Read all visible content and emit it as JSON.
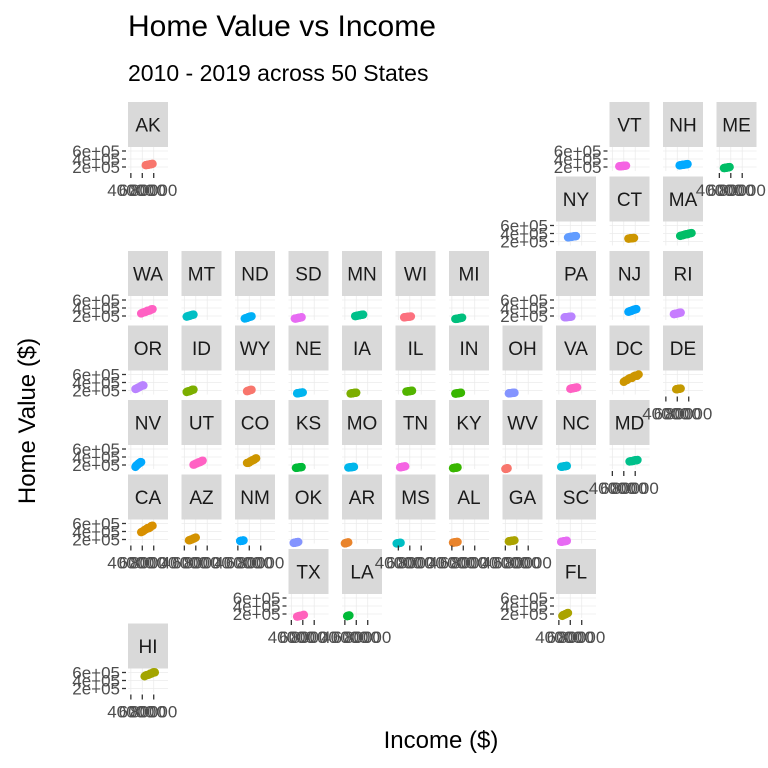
{
  "chart_data": {
    "type": "scatter",
    "title": "Home Value vs Income",
    "subtitle": "2010 - 2019 across 50 States",
    "xlabel": "Income ($)",
    "ylabel": "Home Value ($)",
    "x_ticks": [
      {
        "value": 40000,
        "label": "40000"
      },
      {
        "value": 60000,
        "label": "60000"
      },
      {
        "value": 80000,
        "label": "80000"
      }
    ],
    "y_ticks": [
      {
        "value": 200000,
        "label": "2e+05"
      },
      {
        "value": 400000,
        "label": "4e+05"
      },
      {
        "value": 600000,
        "label": "6e+05"
      }
    ],
    "xlim": [
      35000,
      105000
    ],
    "ylim": [
      100000,
      700000
    ],
    "grid": true,
    "legend": "none",
    "facet_layout": "geofacet US state grid",
    "panels": [
      {
        "state": "AK",
        "row": 0,
        "col": 0,
        "color": "#f8766d",
        "x_range": [
          66000,
          78000
        ],
        "y_range": [
          245000,
          280000
        ]
      },
      {
        "state": "VT",
        "row": 0,
        "col": 9,
        "color": "#f564e3",
        "x_range": [
          52000,
          64000
        ],
        "y_range": [
          215000,
          235000
        ]
      },
      {
        "state": "NH",
        "row": 0,
        "col": 10,
        "color": "#00a9ff",
        "x_range": [
          64000,
          78000
        ],
        "y_range": [
          240000,
          275000
        ]
      },
      {
        "state": "ME",
        "row": 0,
        "col": 11,
        "color": "#00be67",
        "x_range": [
          48000,
          58000
        ],
        "y_range": [
          170000,
          200000
        ]
      },
      {
        "state": "NY",
        "row": 1,
        "col": 8,
        "color": "#619cff",
        "x_range": [
          56000,
          70000
        ],
        "y_range": [
          300000,
          340000
        ]
      },
      {
        "state": "CT",
        "row": 1,
        "col": 9,
        "color": "#cd9600",
        "x_range": [
          68000,
          78000
        ],
        "y_range": [
          270000,
          290000
        ]
      },
      {
        "state": "MA",
        "row": 1,
        "col": 10,
        "color": "#00be67",
        "x_range": [
          65000,
          85000
        ],
        "y_range": [
          330000,
          420000
        ]
      },
      {
        "state": "WA",
        "row": 2,
        "col": 0,
        "color": "#ff61c3",
        "x_range": [
          58000,
          78000
        ],
        "y_range": [
          260000,
          380000
        ]
      },
      {
        "state": "MT",
        "row": 2,
        "col": 1,
        "color": "#00bfc4",
        "x_range": [
          44000,
          56000
        ],
        "y_range": [
          180000,
          240000
        ]
      },
      {
        "state": "ND",
        "row": 2,
        "col": 2,
        "color": "#00b0f6",
        "x_range": [
          52000,
          64000
        ],
        "y_range": [
          130000,
          200000
        ]
      },
      {
        "state": "SD",
        "row": 2,
        "col": 3,
        "color": "#e76bf3",
        "x_range": [
          46000,
          58000
        ],
        "y_range": [
          130000,
          170000
        ]
      },
      {
        "state": "MN",
        "row": 2,
        "col": 4,
        "color": "#00c08b",
        "x_range": [
          58000,
          72000
        ],
        "y_range": [
          190000,
          240000
        ]
      },
      {
        "state": "WI",
        "row": 2,
        "col": 5,
        "color": "#fc717f",
        "x_range": [
          50000,
          62000
        ],
        "y_range": [
          165000,
          190000
        ]
      },
      {
        "state": "MI",
        "row": 2,
        "col": 6,
        "color": "#00bf7d",
        "x_range": [
          46000,
          58000
        ],
        "y_range": [
          120000,
          160000
        ]
      },
      {
        "state": "PA",
        "row": 2,
        "col": 8,
        "color": "#b983ff",
        "x_range": [
          50000,
          62000
        ],
        "y_range": [
          165000,
          185000
        ]
      },
      {
        "state": "NJ",
        "row": 2,
        "col": 9,
        "color": "#00a5ff",
        "x_range": [
          68000,
          82000
        ],
        "y_range": [
          300000,
          380000
        ]
      },
      {
        "state": "RI",
        "row": 2,
        "col": 10,
        "color": "#c77cff",
        "x_range": [
          54000,
          66000
        ],
        "y_range": [
          240000,
          290000
        ]
      },
      {
        "state": "OR",
        "row": 3,
        "col": 0,
        "color": "#b983ff",
        "x_range": [
          48000,
          62000
        ],
        "y_range": [
          230000,
          340000
        ]
      },
      {
        "state": "ID",
        "row": 3,
        "col": 1,
        "color": "#7cae00",
        "x_range": [
          44000,
          56000
        ],
        "y_range": [
          155000,
          230000
        ]
      },
      {
        "state": "WY",
        "row": 3,
        "col": 2,
        "color": "#f8766d",
        "x_range": [
          56000,
          64000
        ],
        "y_range": [
          180000,
          220000
        ]
      },
      {
        "state": "NE",
        "row": 3,
        "col": 3,
        "color": "#00b4ef",
        "x_range": [
          50000,
          60000
        ],
        "y_range": [
          125000,
          155000
        ]
      },
      {
        "state": "IA",
        "row": 3,
        "col": 4,
        "color": "#7cae00",
        "x_range": [
          50000,
          60000
        ],
        "y_range": [
          120000,
          150000
        ]
      },
      {
        "state": "IL",
        "row": 3,
        "col": 5,
        "color": "#53b400",
        "x_range": [
          54000,
          64000
        ],
        "y_range": [
          170000,
          195000
        ]
      },
      {
        "state": "IN",
        "row": 3,
        "col": 6,
        "color": "#39b600",
        "x_range": [
          46000,
          56000
        ],
        "y_range": [
          120000,
          145000
        ]
      },
      {
        "state": "OH",
        "row": 3,
        "col": 7,
        "color": "#8494ff",
        "x_range": [
          46000,
          56000
        ],
        "y_range": [
          128000,
          145000
        ]
      },
      {
        "state": "VA",
        "row": 3,
        "col": 8,
        "color": "#ff61c3",
        "x_range": [
          60000,
          72000
        ],
        "y_range": [
          240000,
          280000
        ]
      },
      {
        "state": "DC",
        "row": 3,
        "col": 9,
        "color": "#cd9600",
        "x_range": [
          60000,
          86000
        ],
        "y_range": [
          400000,
          620000
        ]
      },
      {
        "state": "DE",
        "row": 3,
        "col": 10,
        "color": "#c49a00",
        "x_range": [
          58000,
          66000
        ],
        "y_range": [
          230000,
          250000
        ]
      },
      {
        "state": "NV",
        "row": 4,
        "col": 0,
        "color": "#00a9ff",
        "x_range": [
          48000,
          58000
        ],
        "y_range": [
          150000,
          290000
        ]
      },
      {
        "state": "UT",
        "row": 4,
        "col": 1,
        "color": "#ff61c3",
        "x_range": [
          56000,
          72000
        ],
        "y_range": [
          200000,
          310000
        ]
      },
      {
        "state": "CO",
        "row": 4,
        "col": 2,
        "color": "#cd9600",
        "x_range": [
          56000,
          72000
        ],
        "y_range": [
          230000,
          380000
        ]
      },
      {
        "state": "KS",
        "row": 4,
        "col": 3,
        "color": "#00ba38",
        "x_range": [
          48000,
          58000
        ],
        "y_range": [
          125000,
          150000
        ]
      },
      {
        "state": "MO",
        "row": 4,
        "col": 4,
        "color": "#00b6eb",
        "x_range": [
          46000,
          56000
        ],
        "y_range": [
          135000,
          155000
        ]
      },
      {
        "state": "TN",
        "row": 4,
        "col": 5,
        "color": "#f564e3",
        "x_range": [
          43000,
          52000
        ],
        "y_range": [
          140000,
          170000
        ]
      },
      {
        "state": "KY",
        "row": 4,
        "col": 6,
        "color": "#39b600",
        "x_range": [
          42000,
          50000
        ],
        "y_range": [
          120000,
          140000
        ]
      },
      {
        "state": "WV",
        "row": 4,
        "col": 7,
        "color": "#f8766d",
        "x_range": [
          40000,
          44000
        ],
        "y_range": [
          100000,
          120000
        ]
      },
      {
        "state": "NC",
        "row": 4,
        "col": 8,
        "color": "#00bcd8",
        "x_range": [
          44000,
          54000
        ],
        "y_range": [
          150000,
          180000
        ]
      },
      {
        "state": "MD",
        "row": 4,
        "col": 9,
        "color": "#00c08b",
        "x_range": [
          70000,
          84000
        ],
        "y_range": [
          280000,
          330000
        ]
      },
      {
        "state": "CA",
        "row": 5,
        "col": 0,
        "color": "#d89000",
        "x_range": [
          58000,
          78000
        ],
        "y_range": [
          370000,
          560000
        ]
      },
      {
        "state": "AZ",
        "row": 5,
        "col": 1,
        "color": "#d39200",
        "x_range": [
          48000,
          60000
        ],
        "y_range": [
          170000,
          250000
        ]
      },
      {
        "state": "NM",
        "row": 5,
        "col": 2,
        "color": "#00a9ff",
        "x_range": [
          44000,
          50000
        ],
        "y_range": [
          160000,
          180000
        ]
      },
      {
        "state": "OK",
        "row": 5,
        "col": 3,
        "color": "#8494ff",
        "x_range": [
          44000,
          52000
        ],
        "y_range": [
          110000,
          140000
        ]
      },
      {
        "state": "AR",
        "row": 5,
        "col": 4,
        "color": "#e9842c",
        "x_range": [
          40000,
          46000
        ],
        "y_range": [
          100000,
          130000
        ]
      },
      {
        "state": "MS",
        "row": 5,
        "col": 5,
        "color": "#00bfc4",
        "x_range": [
          37000,
          44000
        ],
        "y_range": [
          100000,
          120000
        ]
      },
      {
        "state": "AL",
        "row": 5,
        "col": 6,
        "color": "#e9842c",
        "x_range": [
          42000,
          50000
        ],
        "y_range": [
          120000,
          140000
        ]
      },
      {
        "state": "GA",
        "row": 5,
        "col": 7,
        "color": "#aba300",
        "x_range": [
          46000,
          56000
        ],
        "y_range": [
          150000,
          180000
        ]
      },
      {
        "state": "SC",
        "row": 5,
        "col": 8,
        "color": "#e76bf3",
        "x_range": [
          44000,
          54000
        ],
        "y_range": [
          140000,
          170000
        ]
      },
      {
        "state": "TX",
        "row": 6,
        "col": 3,
        "color": "#ff62bc",
        "x_range": [
          50000,
          62000
        ],
        "y_range": [
          130000,
          180000
        ]
      },
      {
        "state": "LA",
        "row": 6,
        "col": 4,
        "color": "#00ba38",
        "x_range": [
          44000,
          48000
        ],
        "y_range": [
          145000,
          165000
        ]
      },
      {
        "state": "FL",
        "row": 6,
        "col": 8,
        "color": "#aba300",
        "x_range": [
          46000,
          56000
        ],
        "y_range": [
          150000,
          230000
        ]
      },
      {
        "state": "HI",
        "row": 7,
        "col": 0,
        "color": "#a3a500",
        "x_range": [
          64000,
          82000
        ],
        "y_range": [
          500000,
          620000
        ]
      }
    ]
  }
}
